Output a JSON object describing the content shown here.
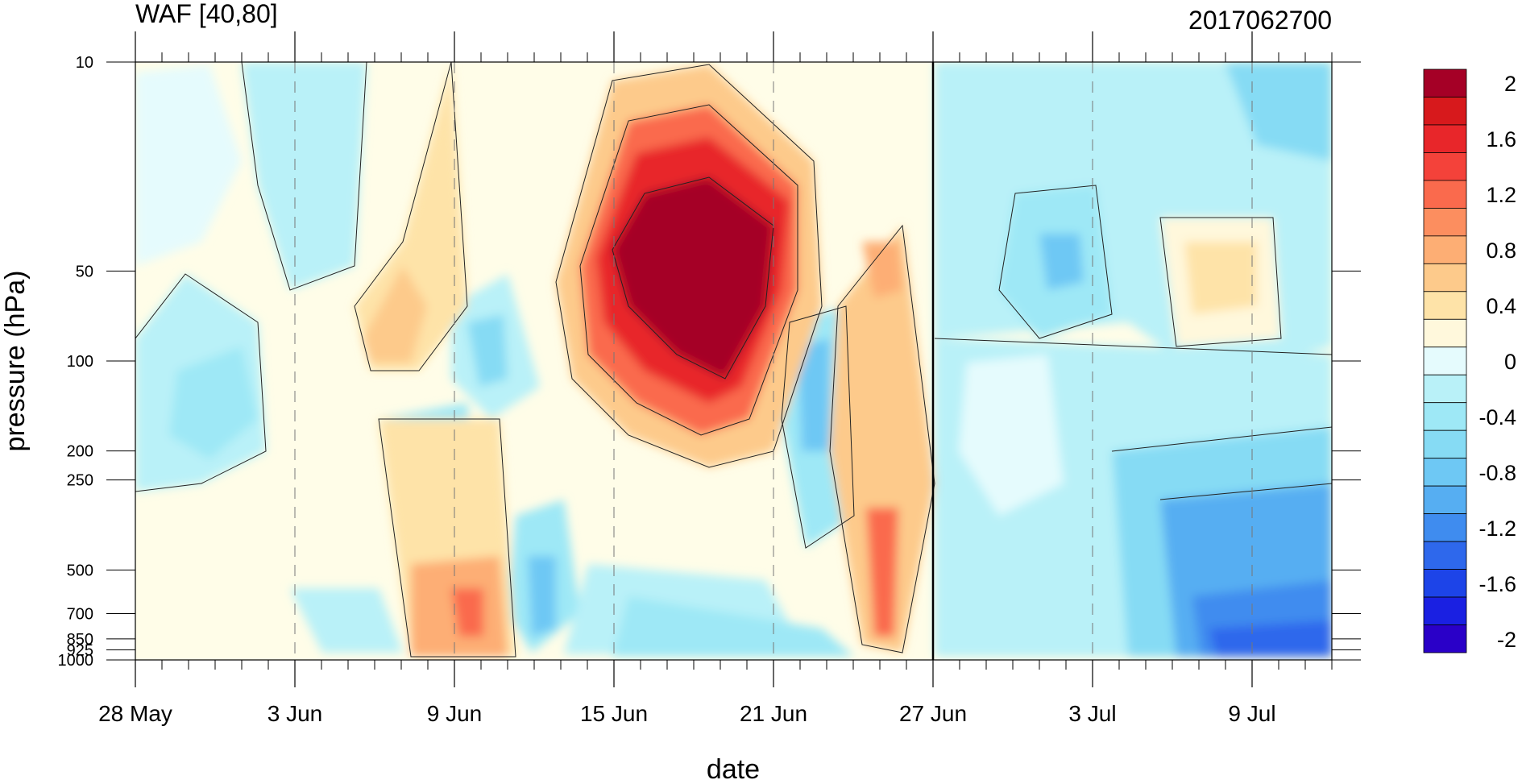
{
  "chart_data": {
    "type": "heatmap",
    "title_left": "WAF [40,80]",
    "title_right": "2017062700",
    "xlabel": "date",
    "ylabel": "pressure (hPa)",
    "y_scale": "log",
    "y_reversed": true,
    "xlim": [
      "2017-05-28",
      "2017-07-12"
    ],
    "ylim": [
      1000,
      10
    ],
    "x_ticks": [
      "28 May",
      "3 Jun",
      "9 Jun",
      "15 Jun",
      "21 Jun",
      "27 Jun",
      "3 Jul",
      "9 Jul"
    ],
    "x_tick_dates": [
      "2017-05-28",
      "2017-06-03",
      "2017-06-09",
      "2017-06-15",
      "2017-06-21",
      "2017-06-27",
      "2017-07-03",
      "2017-07-09"
    ],
    "y_ticks": [
      "10",
      "50",
      "100",
      "200",
      "250",
      "500",
      "700",
      "850",
      "925",
      "1000"
    ],
    "y_tick_values": [
      10,
      50,
      100,
      200,
      250,
      500,
      700,
      850,
      925,
      1000
    ],
    "marker_line_date": "2017-06-27",
    "grid": "dashed vertical lines at date ticks",
    "colorbar": {
      "labels": [
        "2",
        "1.6",
        "1.2",
        "0.8",
        "0.4",
        "0",
        "-0.4",
        "-0.8",
        "-1.2",
        "-1.6",
        "-2"
      ],
      "levels": [
        2,
        1.8,
        1.6,
        1.4,
        1.2,
        1.0,
        0.8,
        0.6,
        0.4,
        0.2,
        0,
        -0.2,
        -0.4,
        -0.6,
        -0.8,
        -1.0,
        -1.2,
        -1.4,
        -1.6,
        -1.8,
        -2
      ],
      "colors": [
        "#a50026",
        "#d7191c",
        "#e8262a",
        "#f4423a",
        "#fa6a4d",
        "#fc8e5f",
        "#fdae74",
        "#fdca8b",
        "#fee3a8",
        "#fff8dc",
        "#e5fbfd",
        "#b9f1f8",
        "#9ee8f6",
        "#86dbf4",
        "#6ec8f4",
        "#56aef2",
        "#3f8cef",
        "#2e68ec",
        "#1d44e8",
        "#1a20e2",
        "#2a00c8"
      ]
    },
    "features": [
      {
        "name": "stratospheric-maximum",
        "date": "2017-06-18",
        "pressure": 60,
        "value": 2.0
      },
      {
        "name": "positive-band-mid",
        "date": "2017-06-25",
        "pressure": 500,
        "value": 1.0
      },
      {
        "name": "negative-lower-right",
        "date": "2017-07-10",
        "pressure": 900,
        "value": -1.4
      }
    ]
  }
}
